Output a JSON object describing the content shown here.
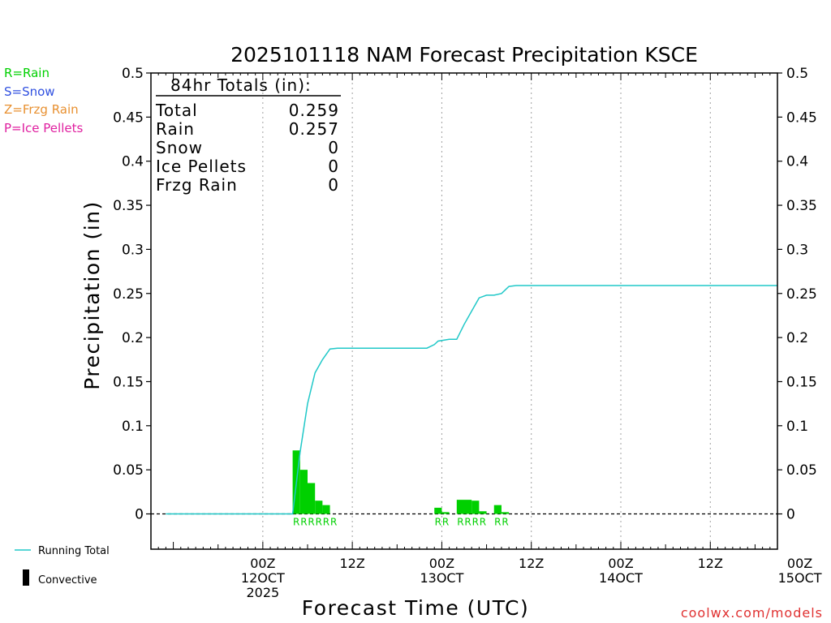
{
  "chart_data": {
    "type": "bar",
    "title": "2025101118 NAM Forecast Precipitation KSCE",
    "xlabel": "Forecast Time (UTC)",
    "ylabel": "Precipitation (in)",
    "ylim": [
      -0.04,
      0.5
    ],
    "yticks": [
      0,
      0.05,
      0.1,
      0.15,
      0.2,
      0.25,
      0.3,
      0.35,
      0.4,
      0.45,
      0.5
    ],
    "ytick_labels": [
      "0",
      "0.05",
      "0.1",
      "0.15",
      "0.2",
      "0.25",
      "0.3",
      "0.35",
      "0.4",
      "0.45",
      "0.5"
    ],
    "xlim_hours": [
      -15,
      69
    ],
    "x_unit": "hours from 00Z 12 Oct 2025",
    "xticks": [
      {
        "hour": 0,
        "lines": [
          "00Z",
          "12OCT",
          "2025"
        ]
      },
      {
        "hour": 12,
        "lines": [
          "12Z"
        ]
      },
      {
        "hour": 24,
        "lines": [
          "00Z",
          "13OCT"
        ]
      },
      {
        "hour": 36,
        "lines": [
          "12Z"
        ]
      },
      {
        "hour": 48,
        "lines": [
          "00Z",
          "14OCT"
        ]
      },
      {
        "hour": 60,
        "lines": [
          "12Z"
        ]
      },
      {
        "hour": 72,
        "lines": [
          "00Z",
          "15OCT"
        ]
      }
    ],
    "bar_width_hours": 1,
    "series": [
      {
        "name": "Rain",
        "color": "#00d000",
        "bars": [
          {
            "hour": 4.5,
            "value": 0.072,
            "label": "R"
          },
          {
            "hour": 5.5,
            "value": 0.05,
            "label": "R"
          },
          {
            "hour": 6.5,
            "value": 0.035,
            "label": "R"
          },
          {
            "hour": 7.5,
            "value": 0.015,
            "label": "R"
          },
          {
            "hour": 8.5,
            "value": 0.01,
            "label": "R"
          },
          {
            "hour": 9.5,
            "value": 0.0,
            "label": "R"
          },
          {
            "hour": 23.5,
            "value": 0.007,
            "label": "R"
          },
          {
            "hour": 24.5,
            "value": 0.002,
            "label": "R"
          },
          {
            "hour": 26.5,
            "value": 0.016,
            "label": "R"
          },
          {
            "hour": 27.5,
            "value": 0.016,
            "label": "R"
          },
          {
            "hour": 28.5,
            "value": 0.015,
            "label": "R"
          },
          {
            "hour": 29.5,
            "value": 0.003,
            "label": "R"
          },
          {
            "hour": 31.5,
            "value": 0.01,
            "label": "R"
          },
          {
            "hour": 32.5,
            "value": 0.002,
            "label": "R"
          }
        ]
      }
    ],
    "running_total": {
      "name": "Running Total",
      "color": "#20c8c8",
      "points": [
        [
          -13,
          0
        ],
        [
          4,
          0
        ],
        [
          5,
          0.07
        ],
        [
          6,
          0.125
        ],
        [
          7,
          0.16
        ],
        [
          8,
          0.175
        ],
        [
          9,
          0.187
        ],
        [
          10,
          0.188
        ],
        [
          22,
          0.188
        ],
        [
          23,
          0.192
        ],
        [
          23.5,
          0.196
        ],
        [
          25,
          0.198
        ],
        [
          26,
          0.198
        ],
        [
          27,
          0.215
        ],
        [
          28,
          0.23
        ],
        [
          29,
          0.245
        ],
        [
          30,
          0.248
        ],
        [
          31,
          0.248
        ],
        [
          32,
          0.25
        ],
        [
          33,
          0.258
        ],
        [
          34,
          0.259
        ],
        [
          69,
          0.259
        ]
      ]
    },
    "totals_box": {
      "header": "84hr Totals (in):",
      "rows": [
        {
          "label": "Total",
          "value": "0.259"
        },
        {
          "label": "Rain",
          "value": "0.257"
        },
        {
          "label": "Snow",
          "value": "0"
        },
        {
          "label": "Ice Pellets",
          "value": "0"
        },
        {
          "label": "Frzg Rain",
          "value": "0"
        }
      ]
    }
  },
  "ptype_legend": [
    {
      "text": "R=Rain",
      "color": "#00d000"
    },
    {
      "text": "S=Snow",
      "color": "#3050e0"
    },
    {
      "text": "Z=Frzg Rain",
      "color": "#e89030"
    },
    {
      "text": "P=Ice Pellets",
      "color": "#e020a0"
    }
  ],
  "bottom_legend": {
    "running_total": "Running Total",
    "convective": "Convective"
  },
  "credit": "coolwx.com/models",
  "colors": {
    "credit": "#e03030",
    "axis": "#000000",
    "grid": "#a0a0a0"
  }
}
